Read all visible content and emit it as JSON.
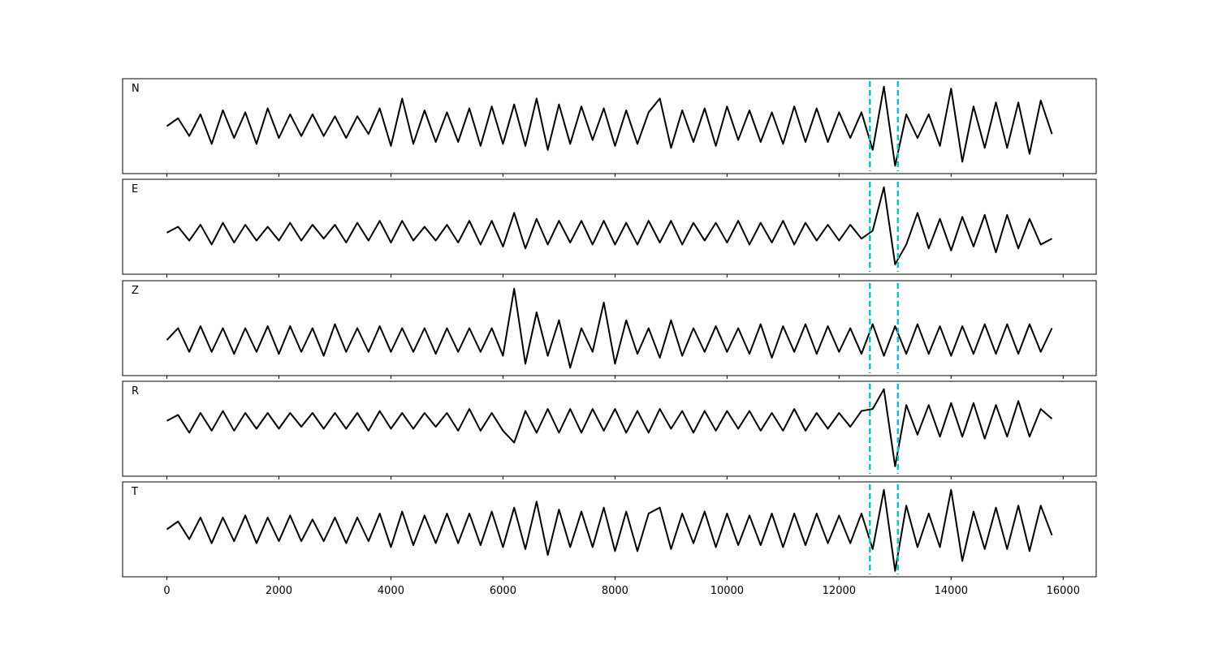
{
  "chart_data": {
    "type": "line",
    "xlim": [
      -790,
      16590
    ],
    "xticks": [
      0,
      2000,
      4000,
      6000,
      8000,
      10000,
      12000,
      14000,
      16000
    ],
    "color": "#000000",
    "markers": {
      "x": [
        12550,
        13050
      ],
      "color": "#17becf",
      "style": "dashed"
    },
    "x": [
      0,
      200,
      400,
      600,
      800,
      1000,
      1200,
      1400,
      1600,
      1800,
      2000,
      2200,
      2400,
      2600,
      2800,
      3000,
      3200,
      3400,
      3600,
      3800,
      4000,
      4200,
      4400,
      4600,
      4800,
      5000,
      5200,
      5400,
      5600,
      5800,
      6000,
      6200,
      6400,
      6600,
      6800,
      7000,
      7200,
      7400,
      7600,
      7800,
      8000,
      8200,
      8400,
      8600,
      8800,
      9000,
      9200,
      9400,
      9600,
      9800,
      10000,
      10200,
      10400,
      10600,
      10800,
      11000,
      11200,
      11400,
      11600,
      11800,
      12000,
      12200,
      12400,
      12600,
      12800,
      13000,
      13200,
      13400,
      13600,
      13800,
      14000,
      14200,
      14400,
      14600,
      14800,
      15000,
      15200,
      15400,
      15600,
      15800
    ],
    "panels": [
      {
        "label": "N",
        "ylim": [
          -1.2,
          1.2
        ],
        "values": [
          0,
          0.2,
          -0.25,
          0.3,
          -0.45,
          0.4,
          -0.3,
          0.35,
          -0.45,
          0.45,
          -0.3,
          0.3,
          -0.25,
          0.3,
          -0.25,
          0.25,
          -0.3,
          0.25,
          -0.2,
          0.45,
          -0.5,
          0.7,
          -0.45,
          0.4,
          -0.4,
          0.35,
          -0.4,
          0.45,
          -0.5,
          0.5,
          -0.45,
          0.55,
          -0.5,
          0.7,
          -0.6,
          0.55,
          -0.45,
          0.5,
          -0.35,
          0.45,
          -0.5,
          0.4,
          -0.45,
          0.35,
          0.7,
          -0.55,
          0.4,
          -0.4,
          0.45,
          -0.5,
          0.5,
          -0.35,
          0.4,
          -0.4,
          0.35,
          -0.45,
          0.5,
          -0.4,
          0.45,
          -0.4,
          0.35,
          -0.3,
          0.35,
          -0.6,
          1.0,
          -1.0,
          0.3,
          -0.3,
          0.3,
          -0.5,
          0.95,
          -0.9,
          0.5,
          -0.55,
          0.6,
          -0.55,
          0.6,
          -0.7,
          0.65,
          -0.2
        ]
      },
      {
        "label": "E",
        "ylim": [
          -1.05,
          1.35
        ],
        "values": [
          0,
          0.15,
          -0.2,
          0.2,
          -0.3,
          0.25,
          -0.25,
          0.2,
          -0.2,
          0.15,
          -0.2,
          0.25,
          -0.2,
          0.2,
          -0.15,
          0.2,
          -0.25,
          0.25,
          -0.2,
          0.3,
          -0.25,
          0.3,
          -0.2,
          0.15,
          -0.2,
          0.2,
          -0.25,
          0.3,
          -0.3,
          0.3,
          -0.35,
          0.5,
          -0.4,
          0.35,
          -0.3,
          0.3,
          -0.25,
          0.3,
          -0.3,
          0.3,
          -0.3,
          0.25,
          -0.3,
          0.3,
          -0.25,
          0.3,
          -0.3,
          0.25,
          -0.2,
          0.25,
          -0.25,
          0.3,
          -0.3,
          0.25,
          -0.25,
          0.3,
          -0.3,
          0.25,
          -0.2,
          0.2,
          -0.2,
          0.2,
          -0.15,
          0.05,
          1.15,
          -0.8,
          -0.3,
          0.5,
          -0.4,
          0.35,
          -0.45,
          0.4,
          -0.35,
          0.45,
          -0.5,
          0.45,
          -0.4,
          0.35,
          -0.3,
          -0.15
        ]
      },
      {
        "label": "Z",
        "ylim": [
          -0.9,
          1.5
        ],
        "values": [
          0,
          0.3,
          -0.3,
          0.35,
          -0.3,
          0.3,
          -0.35,
          0.3,
          -0.3,
          0.35,
          -0.35,
          0.35,
          -0.3,
          0.3,
          -0.4,
          0.4,
          -0.3,
          0.3,
          -0.3,
          0.35,
          -0.3,
          0.3,
          -0.3,
          0.3,
          -0.35,
          0.3,
          -0.3,
          0.3,
          -0.3,
          0.3,
          -0.4,
          1.3,
          -0.6,
          0.7,
          -0.4,
          0.5,
          -0.7,
          0.3,
          -0.3,
          0.95,
          -0.6,
          0.5,
          -0.35,
          0.3,
          -0.45,
          0.5,
          -0.4,
          0.3,
          -0.3,
          0.35,
          -0.3,
          0.3,
          -0.35,
          0.4,
          -0.45,
          0.35,
          -0.3,
          0.4,
          -0.35,
          0.35,
          -0.3,
          0.3,
          -0.35,
          0.4,
          -0.4,
          0.35,
          -0.35,
          0.4,
          -0.35,
          0.35,
          -0.4,
          0.35,
          -0.35,
          0.4,
          -0.35,
          0.4,
          -0.35,
          0.4,
          -0.3,
          0.3
        ]
      },
      {
        "label": "R",
        "ylim": [
          -1.4,
          1.0
        ],
        "values": [
          0,
          0.15,
          -0.3,
          0.2,
          -0.25,
          0.25,
          -0.25,
          0.2,
          -0.2,
          0.2,
          -0.2,
          0.2,
          -0.15,
          0.2,
          -0.2,
          0.2,
          -0.2,
          0.2,
          -0.25,
          0.25,
          -0.2,
          0.2,
          -0.2,
          0.2,
          -0.15,
          0.2,
          -0.25,
          0.3,
          -0.25,
          0.2,
          -0.25,
          -0.55,
          0.25,
          -0.3,
          0.3,
          -0.3,
          0.3,
          -0.3,
          0.3,
          -0.25,
          0.3,
          -0.3,
          0.25,
          -0.3,
          0.3,
          -0.2,
          0.25,
          -0.3,
          0.25,
          -0.25,
          0.25,
          -0.2,
          0.25,
          -0.25,
          0.2,
          -0.25,
          0.3,
          -0.25,
          0.2,
          -0.2,
          0.2,
          -0.15,
          0.25,
          0.3,
          0.8,
          -1.15,
          0.4,
          -0.35,
          0.4,
          -0.4,
          0.45,
          -0.4,
          0.45,
          -0.45,
          0.4,
          -0.4,
          0.5,
          -0.4,
          0.3,
          0.05
        ]
      },
      {
        "label": "T",
        "ylim": [
          -1.2,
          1.2
        ],
        "values": [
          0,
          0.2,
          -0.25,
          0.3,
          -0.35,
          0.3,
          -0.3,
          0.35,
          -0.35,
          0.3,
          -0.3,
          0.35,
          -0.3,
          0.25,
          -0.3,
          0.3,
          -0.35,
          0.3,
          -0.3,
          0.4,
          -0.45,
          0.45,
          -0.4,
          0.35,
          -0.35,
          0.4,
          -0.35,
          0.4,
          -0.4,
          0.45,
          -0.45,
          0.55,
          -0.5,
          0.7,
          -0.65,
          0.5,
          -0.45,
          0.45,
          -0.45,
          0.55,
          -0.55,
          0.45,
          -0.55,
          0.4,
          0.55,
          -0.5,
          0.4,
          -0.35,
          0.45,
          -0.45,
          0.4,
          -0.4,
          0.35,
          -0.4,
          0.4,
          -0.45,
          0.4,
          -0.4,
          0.4,
          -0.35,
          0.35,
          -0.35,
          0.4,
          -0.5,
          1.0,
          -1.05,
          0.6,
          -0.45,
          0.4,
          -0.45,
          1.0,
          -0.8,
          0.45,
          -0.5,
          0.55,
          -0.5,
          0.6,
          -0.55,
          0.6,
          -0.15
        ]
      }
    ]
  }
}
